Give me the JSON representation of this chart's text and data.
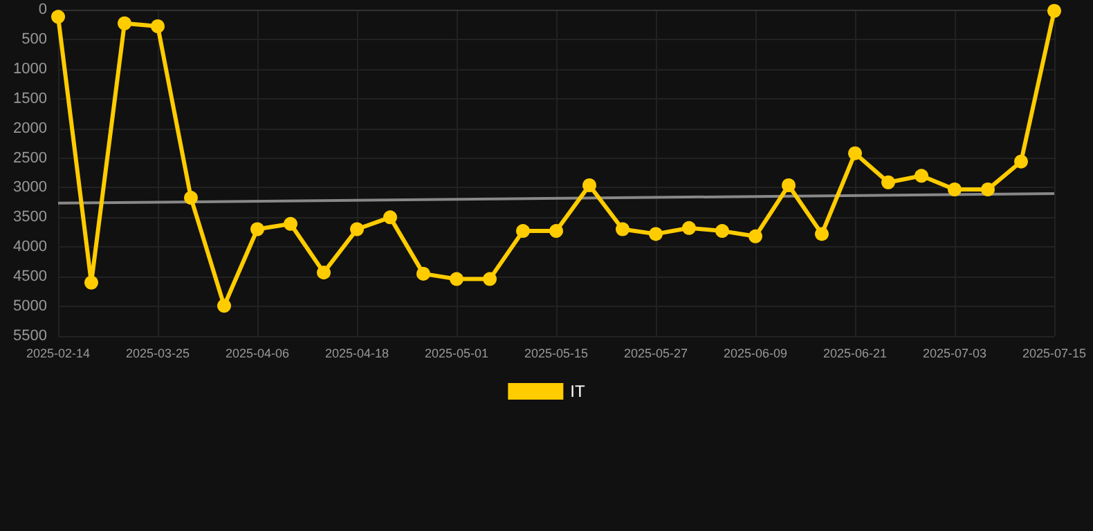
{
  "chart_data": {
    "type": "line",
    "categories": [
      "2025-02-14",
      null,
      null,
      "2025-03-25",
      null,
      null,
      "2025-04-06",
      null,
      null,
      "2025-04-18",
      null,
      null,
      "2025-05-01",
      null,
      null,
      "2025-05-15",
      null,
      null,
      "2025-05-27",
      null,
      null,
      "2025-06-09",
      null,
      null,
      "2025-06-21",
      null,
      null,
      "2025-07-03",
      null,
      null,
      "2025-07-15"
    ],
    "series": [
      {
        "name": "IT",
        "color": "#ffcc00",
        "values": [
          120,
          4600,
          230,
          280,
          3170,
          4990,
          3700,
          3610,
          4430,
          3700,
          3500,
          4450,
          4540,
          4540,
          3730,
          3730,
          2960,
          3700,
          3780,
          3680,
          3730,
          3820,
          2960,
          3780,
          2420,
          2910,
          2800,
          3030,
          3030,
          2560,
          20
        ]
      },
      {
        "type": "line",
        "color": "#888888",
        "marker": "none",
        "values": [
          3260,
          null,
          null,
          null,
          null,
          null,
          null,
          null,
          null,
          null,
          null,
          null,
          null,
          null,
          null,
          null,
          null,
          null,
          null,
          null,
          null,
          null,
          null,
          null,
          null,
          null,
          null,
          null,
          null,
          null,
          3100
        ]
      }
    ],
    "ylim": [
      5500,
      0
    ],
    "yticks": [
      0,
      500,
      1000,
      1500,
      2000,
      2500,
      3000,
      3500,
      4000,
      4500,
      5000,
      5500
    ],
    "grid": true,
    "legend": "bottom",
    "marker": "circle"
  }
}
